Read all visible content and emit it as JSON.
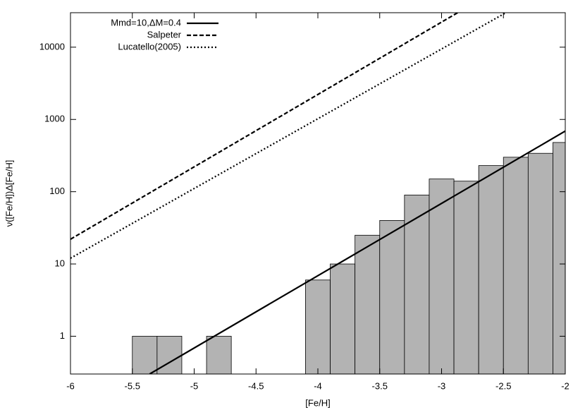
{
  "chart_data": {
    "type": "histogram",
    "xlabel": "[Fe/H]",
    "ylabel": "ν([Fe/H])Δ[Fe/H]",
    "xlim": [
      -6,
      -2
    ],
    "xticks": [
      -6,
      -5.5,
      -5,
      -4.5,
      -4,
      -3.5,
      -3,
      -2.5,
      -2
    ],
    "ylim": [
      0.3,
      30000
    ],
    "yticks": [
      1,
      10,
      100,
      1000,
      10000
    ],
    "log_y": true,
    "bins": [
      -5.5,
      -5.3,
      -5.1,
      -4.9,
      -4.7,
      -4.5,
      -4.3,
      -4.1,
      -3.9,
      -3.7,
      -3.5,
      -3.3,
      -3.1,
      -2.9,
      -2.7,
      -2.5,
      -2.3,
      -2.1,
      -1.9
    ],
    "counts": [
      1,
      1,
      0,
      1,
      0,
      0,
      0,
      6,
      10,
      25,
      40,
      90,
      150,
      140,
      230,
      300,
      340,
      480
    ],
    "color": "#b3b3b3",
    "legend": "upper left",
    "series": [
      {
        "name": "Mmd=10,ΔM=0.4",
        "color": "#000000",
        "dash": "solid",
        "x": [
          -5.36,
          -2
        ],
        "values": [
          0.3,
          690
        ]
      },
      {
        "name": "Salpeter",
        "color": "#000000",
        "dash": "dashed",
        "x": [
          -6,
          -2.87
        ],
        "values": [
          22,
          30000
        ]
      },
      {
        "name": "Lucatello(2005)",
        "color": "#000000",
        "dash": "dotted",
        "x": [
          -6,
          -2.48
        ],
        "values": [
          12,
          30000
        ]
      }
    ]
  }
}
